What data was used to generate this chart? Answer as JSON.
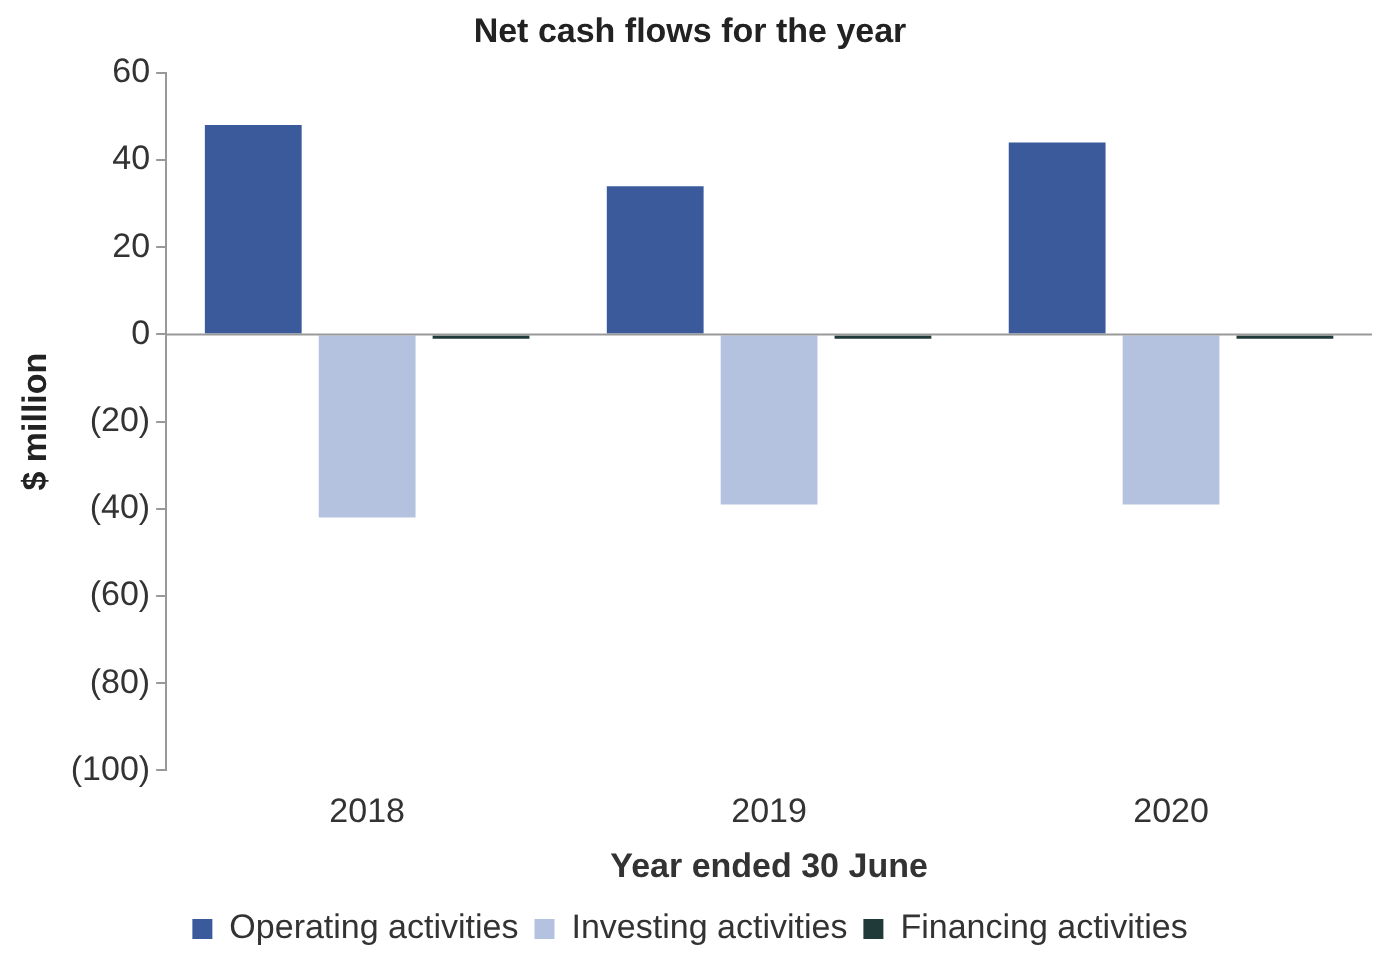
{
  "chart_data": {
    "type": "bar",
    "title": "Net cash flows for the year",
    "xlabel": "Year ended 30 June",
    "ylabel": "$ million",
    "categories": [
      "2018",
      "2019",
      "2020"
    ],
    "series": [
      {
        "name": "Operating activities",
        "color": "#3a5a9c",
        "values": [
          48,
          34,
          44
        ]
      },
      {
        "name": "Investing activities",
        "color": "#b4c2e0",
        "values": [
          -42,
          -39,
          -39
        ]
      },
      {
        "name": "Financing activities",
        "color": "#1f3a38",
        "values": [
          -1,
          -1,
          -1
        ]
      }
    ],
    "ylim": [
      -100,
      60
    ],
    "yticks": [
      {
        "value": -100,
        "label": "(100)"
      },
      {
        "value": -80,
        "label": "(80)"
      },
      {
        "value": -60,
        "label": "(60)"
      },
      {
        "value": -40,
        "label": "(40)"
      },
      {
        "value": -20,
        "label": "(20)"
      },
      0,
      20,
      40,
      60
    ],
    "legend": "bottom"
  }
}
